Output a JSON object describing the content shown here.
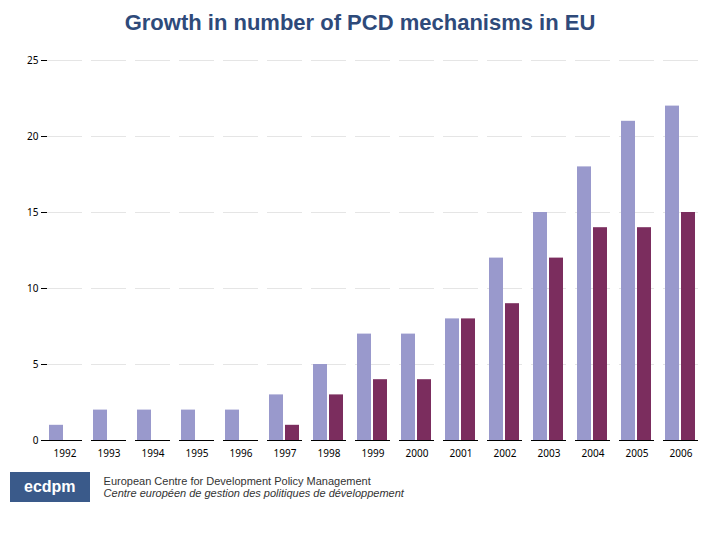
{
  "chart_data": {
    "type": "bar",
    "title": "Growth in number of PCD mechanisms in EU",
    "categories": [
      "1992",
      "1993",
      "1994",
      "1995",
      "1996",
      "1997",
      "1998",
      "1999",
      "2000",
      "2001",
      "2002",
      "2003",
      "2004",
      "2005",
      "2006"
    ],
    "series": [
      {
        "color": "#9999cc",
        "values": [
          1,
          2,
          2,
          2,
          2,
          3,
          5,
          7,
          7,
          8,
          12,
          15,
          18,
          21,
          22
        ]
      },
      {
        "color": "#7b2d5e",
        "values": [
          0,
          0,
          0,
          0,
          0,
          1,
          3,
          4,
          4,
          8,
          9,
          12,
          14,
          14,
          15
        ]
      }
    ],
    "ylim": [
      0,
      25
    ],
    "yticks": [
      0,
      5,
      10,
      15,
      20,
      25
    ],
    "grid": true,
    "annotations": [
      "ecdpm",
      "European Centre for Development Policy Management",
      "Centre européen de gestion des politiques de développement"
    ]
  }
}
